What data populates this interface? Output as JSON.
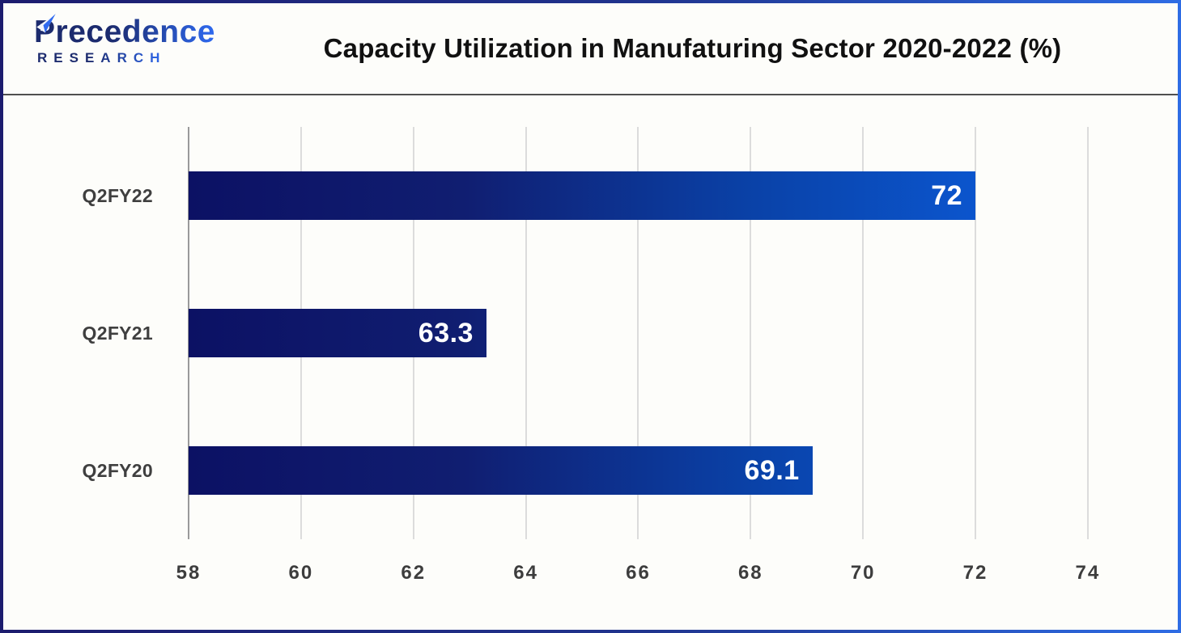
{
  "header": {
    "logo": {
      "brand": "Precedence",
      "sub": "RESEARCH"
    },
    "title": "Capacity Utilization in Manufaturing Sector 2020-2022 (%)"
  },
  "chart_data": {
    "type": "bar",
    "orientation": "horizontal",
    "title": "Capacity Utilization in Manufaturing Sector 2020-2022 (%)",
    "categories": [
      "Q2FY22",
      "Q2FY21",
      "Q2FY20"
    ],
    "values": [
      72,
      63.3,
      69.1
    ],
    "value_labels": [
      "72",
      "63.3",
      "69.1"
    ],
    "x_ticks": [
      58,
      60,
      62,
      64,
      66,
      68,
      70,
      72,
      74
    ],
    "xlim": [
      58,
      75.6
    ],
    "grid": "vertical",
    "legend": "none",
    "unit": "%",
    "bar_gradient_stops": [
      [
        "0%",
        "#0c1164"
      ],
      [
        "35%",
        "#101e71"
      ],
      [
        "72%",
        "#0a42a8"
      ],
      [
        "100%",
        "#0b55cd"
      ]
    ]
  },
  "colors": {
    "border_gradient": [
      "#1c1c6e",
      "#2e6ce4"
    ],
    "grid_line": "#dcdcdc",
    "axis_line": "#9a9a9a",
    "tick_text": "#3d3d3d",
    "category_text": "#3f3f3f",
    "value_text": "#ffffff",
    "title_text": "#111111",
    "header_separator": "#4f4f4f",
    "logo_navy": "#1c2b6e",
    "logo_blue": "#2f6af0",
    "background": "#fdfdfa"
  }
}
